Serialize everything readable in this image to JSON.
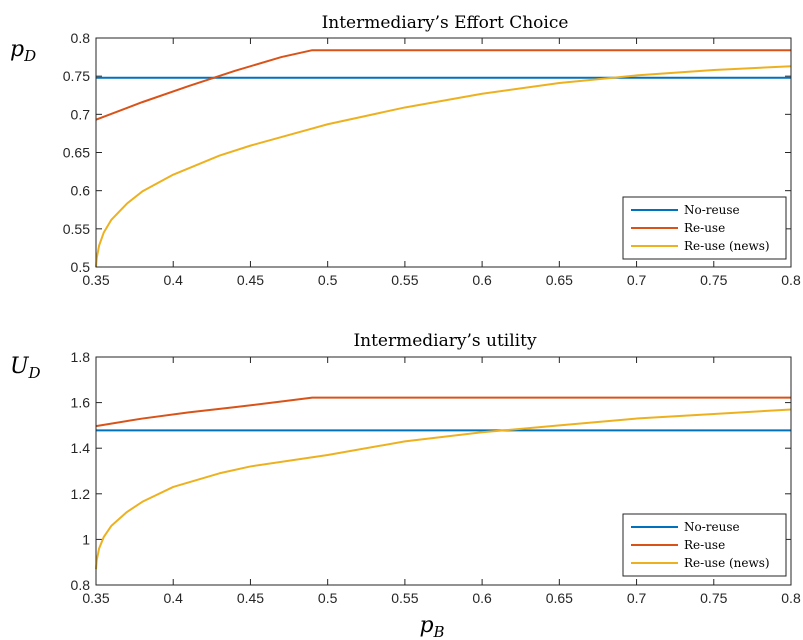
{
  "chart_data": [
    {
      "type": "line",
      "title": "Intermediary’s Effort Choice",
      "ylabel_main": "p",
      "ylabel_sub": "D",
      "xlim": [
        0.35,
        0.8
      ],
      "ylim": [
        0.5,
        0.8
      ],
      "xticks": [
        0.35,
        0.4,
        0.45,
        0.5,
        0.55,
        0.6,
        0.65,
        0.7,
        0.75,
        0.8
      ],
      "xtick_labels": [
        "0.35",
        "0.4",
        "0.45",
        "0.5",
        "0.55",
        "0.6",
        "0.65",
        "0.7",
        "0.75",
        "0.8"
      ],
      "yticks": [
        0.5,
        0.55,
        0.6,
        0.65,
        0.7,
        0.75,
        0.8
      ],
      "ytick_labels": [
        "0.5",
        "0.55",
        "0.6",
        "0.65",
        "0.7",
        "0.75",
        "0.8"
      ],
      "legend_position": "bottom-right",
      "series": [
        {
          "name": "No-reuse",
          "color": "#0072BD",
          "x": [
            0.35,
            0.8
          ],
          "y": [
            0.748,
            0.748
          ]
        },
        {
          "name": "Re-use",
          "color": "#D95319",
          "x": [
            0.35,
            0.38,
            0.41,
            0.44,
            0.47,
            0.49,
            0.8
          ],
          "y": [
            0.693,
            0.716,
            0.737,
            0.757,
            0.775,
            0.784,
            0.784
          ]
        },
        {
          "name": "Re-use (news)",
          "color": "#EDB120",
          "x": [
            0.35,
            0.3505,
            0.352,
            0.355,
            0.36,
            0.37,
            0.38,
            0.4,
            0.43,
            0.45,
            0.5,
            0.55,
            0.6,
            0.65,
            0.7,
            0.75,
            0.8
          ],
          "y": [
            0.5,
            0.512,
            0.528,
            0.545,
            0.562,
            0.583,
            0.599,
            0.621,
            0.646,
            0.659,
            0.687,
            0.709,
            0.727,
            0.741,
            0.751,
            0.758,
            0.763
          ]
        }
      ]
    },
    {
      "type": "line",
      "title": "Intermediary’s utility",
      "ylabel_main": "U",
      "ylabel_sub": "D",
      "xlabel_main": "p",
      "xlabel_sub": "B",
      "xlim": [
        0.35,
        0.8
      ],
      "ylim": [
        0.8,
        1.8
      ],
      "xticks": [
        0.35,
        0.4,
        0.45,
        0.5,
        0.55,
        0.6,
        0.65,
        0.7,
        0.75,
        0.8
      ],
      "xtick_labels": [
        "0.35",
        "0.4",
        "0.45",
        "0.5",
        "0.55",
        "0.6",
        "0.65",
        "0.7",
        "0.75",
        "0.8"
      ],
      "yticks": [
        0.8,
        1.0,
        1.2,
        1.4,
        1.6,
        1.8
      ],
      "ytick_labels": [
        "0.8",
        "1",
        "1.2",
        "1.4",
        "1.6",
        "1.8"
      ],
      "legend_position": "bottom-right",
      "series": [
        {
          "name": "No-reuse",
          "color": "#0072BD",
          "x": [
            0.35,
            0.8
          ],
          "y": [
            1.478,
            1.478
          ]
        },
        {
          "name": "Re-use",
          "color": "#D95319",
          "x": [
            0.35,
            0.38,
            0.41,
            0.44,
            0.47,
            0.49,
            0.8
          ],
          "y": [
            1.497,
            1.53,
            1.557,
            1.58,
            1.605,
            1.622,
            1.622
          ]
        },
        {
          "name": "Re-use (news)",
          "color": "#EDB120",
          "x": [
            0.35,
            0.3505,
            0.352,
            0.355,
            0.36,
            0.37,
            0.38,
            0.4,
            0.43,
            0.45,
            0.5,
            0.55,
            0.6,
            0.65,
            0.7,
            0.75,
            0.8
          ],
          "y": [
            0.87,
            0.91,
            0.96,
            1.01,
            1.06,
            1.12,
            1.165,
            1.23,
            1.29,
            1.32,
            1.37,
            1.43,
            1.47,
            1.5,
            1.53,
            1.55,
            1.57
          ]
        }
      ]
    }
  ]
}
